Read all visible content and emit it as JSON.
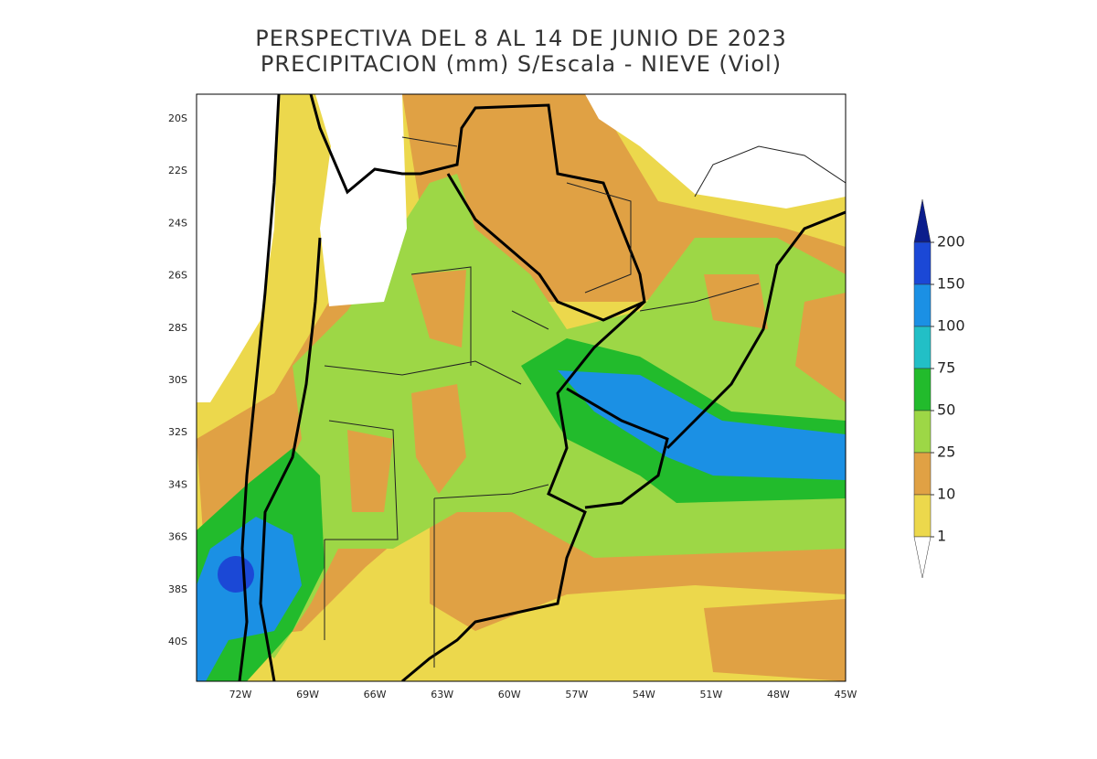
{
  "title": [
    "PERSPECTIVA DEL 8 AL 14 DE JUNIO DE 2023",
    "PRECIPITACION (mm) S/Escala - NIEVE (Viol)"
  ],
  "lat_labels": [
    "20S",
    "22S",
    "24S",
    "26S",
    "28S",
    "30S",
    "32S",
    "34S",
    "36S",
    "38S",
    "40S"
  ],
  "lon_labels": [
    "72W",
    "69W",
    "66W",
    "63W",
    "60W",
    "57W",
    "54W",
    "51W",
    "48W",
    "45W"
  ],
  "legend": {
    "levels": [
      200,
      150,
      100,
      75,
      50,
      25,
      10,
      1
    ],
    "colors": [
      "#0b1d8c",
      "#1b48d6",
      "#1b90e4",
      "#22bfc6",
      "#22bb2c",
      "#9dd746",
      "#e0a144",
      "#ecd84c",
      "#ffffff"
    ]
  }
}
